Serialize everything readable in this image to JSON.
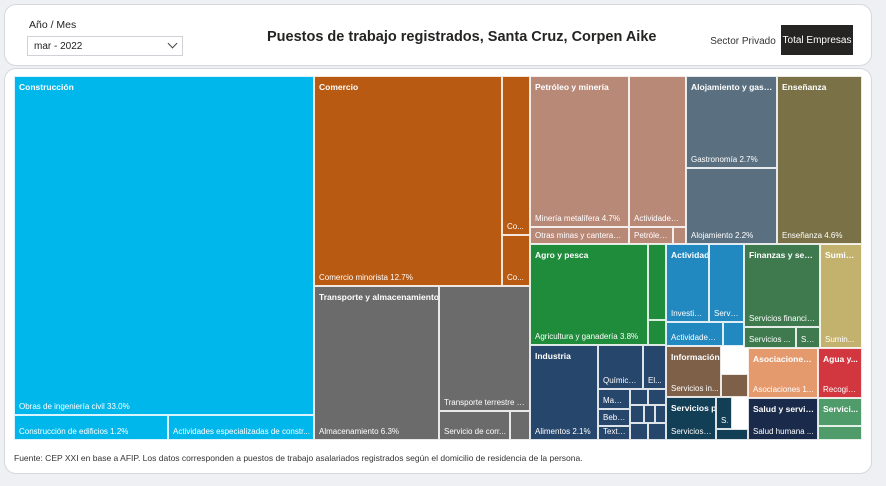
{
  "filter": {
    "label": "Año / Mes",
    "value": "mar - 2022"
  },
  "title": "Puestos de trabajo registrados, Santa Cruz, Corpen Aike",
  "buttons": {
    "privado": "Sector Privado",
    "total": "Total Empresas"
  },
  "source_note": "Fuente: CEP XXI en base a AFIP. Los datos corresponden a puestos de trabajo asalariados registrados según el domicilio de residencia de la persona.",
  "colors": {
    "construccion": "#00b7eb",
    "comercio": "#b85a12",
    "petroleo": "#b98978",
    "alojamiento": "#5a7080",
    "ensenanza": "#7a7246",
    "transporte": "#6b6b6b",
    "agro": "#1e8c3a",
    "actividades_adm": "#2288c0",
    "finanzas": "#3f7a4f",
    "suministro": "#c3b26e",
    "industria": "#27466b",
    "informacion": "#7e6048",
    "asociaciones": "#e59a6e",
    "agua": "#d2373f",
    "servicios_prof": "#123e56",
    "salud": "#1a2a4a",
    "servicios_otros": "#4f9c6a"
  },
  "treemap": {
    "groups": {
      "construccion": "Construcción",
      "comercio": "Comercio",
      "petroleo": "Petróleo y minería",
      "alojamiento": "Alojamiento y gast...",
      "ensenanza": "Enseñanza",
      "transporte": "Transporte y almacenamiento",
      "agro": "Agro y pesca",
      "actividades_adm": "Actividades ad...",
      "finanzas": "Finanzas y segu...",
      "suministro": "Sumin...",
      "industria": "Industria",
      "informacion": "Información y co...",
      "asociaciones": "Asociaciones ...",
      "agua": "Agua y...",
      "servicios_prof": "Servicios profesi...",
      "salud": "Salud y servici...",
      "servicios_otros": "Servici..."
    },
    "cells": {
      "obras_ing": "Obras de ingeniería civil 33.0%",
      "construccion_edificios": "Construcción de edificios 1.2%",
      "actividades_especializadas": "Actividades especializadas de constr...",
      "comercio_minorista": "Comercio minorista 12.7%",
      "com_co1": "Co...",
      "com_co2": "Co...",
      "mineria_metalifera": "Minería metalífera 4.7%",
      "actividades_pet": "Actividades ...",
      "otras_minas": "Otras minas y canteras ...",
      "petroleo_sub": "Petróleo ...",
      "gastronomia": "Gastronomía 2.7%",
      "alojamiento": "Alojamiento 2.2%",
      "ensenanza": "Enseñanza 4.6%",
      "almacenamiento": "Almacenamiento 6.3%",
      "transporte_terrestre": "Transporte terrestre y...",
      "servicio_corr": "Servicio de corr...",
      "agricultura": "Agricultura y ganadería 3.8%",
      "investig": "Investig...",
      "servicio_adm": "Servicio...",
      "actividades_adm": "Actividades ...",
      "servicios_financie": "Servicios financie...",
      "servicios_fin2": "Servicios ...",
      "ser_fin3": "Ser...",
      "sumin_sub": "Sumin...",
      "quimico": "Químico ...",
      "el": "El...",
      "madera": "Made...",
      "bebidas": "Bebid...",
      "textil": "Textil...",
      "alimentos": "Alimentos 2.1%",
      "servicios_in": "Servicios in...",
      "asociaciones_sub": "Asociaciones 1...",
      "recogida": "Recogid...",
      "servicios_j": "Servicios j...",
      "s_small": "S...",
      "salud_humana": "Salud humana ..."
    }
  }
}
